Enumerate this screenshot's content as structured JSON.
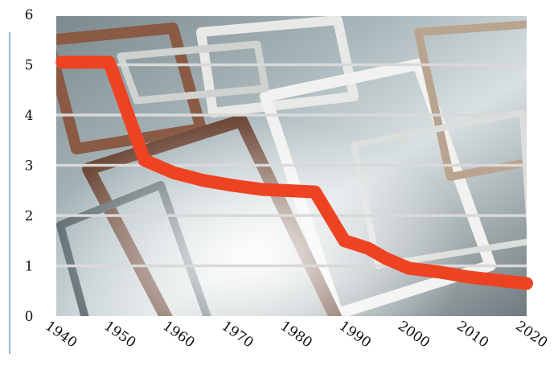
{
  "chart_data": {
    "type": "line",
    "title": "",
    "xlabel": "",
    "ylabel": "",
    "xlim": [
      1940,
      2020
    ],
    "ylim": [
      0,
      6
    ],
    "x_ticks": [
      "1940",
      "1950",
      "1960",
      "1970",
      "1980",
      "1990",
      "2000",
      "2010",
      "2020"
    ],
    "y_ticks": [
      "0",
      "1",
      "2",
      "3",
      "4",
      "5",
      "6"
    ],
    "grid": "horizontal",
    "background": "photograph of stacked old window frames",
    "series": [
      {
        "color": "#ee4323",
        "points": [
          {
            "x": 1941,
            "y": 5.05
          },
          {
            "x": 1949,
            "y": 5.05
          },
          {
            "x": 1955,
            "y": 3.1
          },
          {
            "x": 1960,
            "y": 2.85
          },
          {
            "x": 1965,
            "y": 2.7
          },
          {
            "x": 1970,
            "y": 2.6
          },
          {
            "x": 1975,
            "y": 2.52
          },
          {
            "x": 1984,
            "y": 2.47
          },
          {
            "x": 1989,
            "y": 1.5
          },
          {
            "x": 1993,
            "y": 1.35
          },
          {
            "x": 1996,
            "y": 1.15
          },
          {
            "x": 2000,
            "y": 0.95
          },
          {
            "x": 2005,
            "y": 0.88
          },
          {
            "x": 2010,
            "y": 0.78
          },
          {
            "x": 2020,
            "y": 0.65
          }
        ]
      }
    ]
  }
}
